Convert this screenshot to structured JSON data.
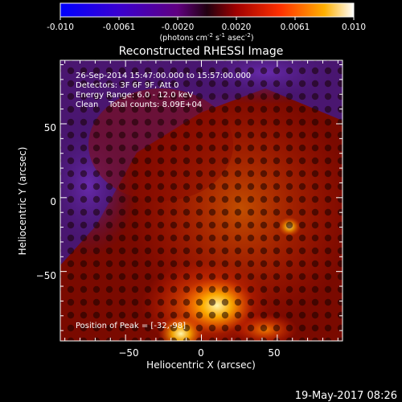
{
  "colorbar": {
    "ticks": [
      "-0.010",
      "-0.0061",
      "-0.0020",
      "0.0020",
      "0.0061",
      "0.010"
    ],
    "unit_label": "(photons cm",
    "unit_exp1": "-2",
    "unit_mid": " s",
    "unit_exp2": "-1",
    "unit_mid2": " asec",
    "unit_exp3": "-2",
    "unit_close": ")"
  },
  "chart_data": {
    "type": "heatmap",
    "title": "Reconstructed RHESSI Image",
    "xlabel": "Heliocentric X (arcsec)",
    "ylabel": "Heliocentric Y (arcsec)",
    "xlim": [
      -93,
      93
    ],
    "ylim": [
      -97,
      93
    ],
    "xticks": [
      -50,
      0,
      50
    ],
    "yticks": [
      50,
      0,
      -50
    ],
    "xtick_labels": [
      "−50",
      "0",
      "50"
    ],
    "ytick_labels": [
      "50",
      "0",
      "−50"
    ],
    "value_range": [
      -0.01,
      0.01
    ],
    "peak": {
      "x": -32,
      "y": -98
    },
    "annotations": {
      "time_range": "26-Sep-2014 15:47:00.000 to 15:57:00.000",
      "detectors": "Detectors: 3F 6F 9F, Att 0",
      "energy": "Energy Range: 6.0 - 12.0 keV",
      "clean": "Clean    Total counts: 8.09E+04",
      "peak_text": "Position of Peak = [-32,-98]"
    }
  },
  "footer": {
    "timestamp": "19-May-2017 08:26"
  }
}
